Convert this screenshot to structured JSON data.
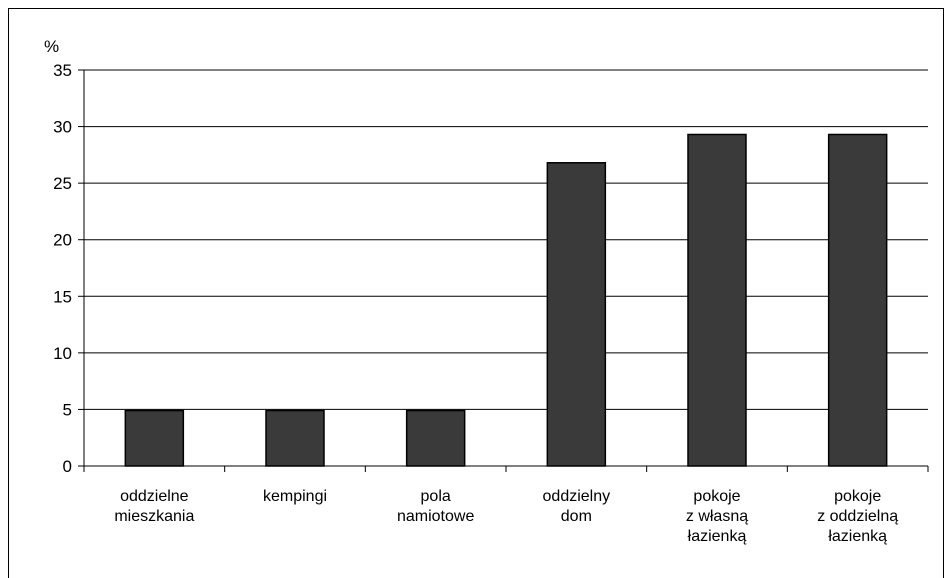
{
  "chart_data": {
    "type": "bar",
    "ylabel": "%",
    "ylim": [
      0,
      35
    ],
    "yticks": [
      0,
      5,
      10,
      15,
      20,
      25,
      30,
      35
    ],
    "grid": true,
    "categories": [
      [
        "oddzielne",
        "mieszkania"
      ],
      [
        "kempingi"
      ],
      [
        "pola",
        "namiotowe"
      ],
      [
        "oddzielny",
        "dom"
      ],
      [
        "pokoje",
        "z własną",
        "łazienką"
      ],
      [
        "pokoje",
        "z oddzielną",
        "łazienką"
      ]
    ],
    "values": [
      4.9,
      4.9,
      4.9,
      26.8,
      29.3,
      29.3
    ],
    "colors": {
      "bar": "#3a3a3a",
      "bar_edge": "#000000",
      "grid": "#000000"
    }
  }
}
